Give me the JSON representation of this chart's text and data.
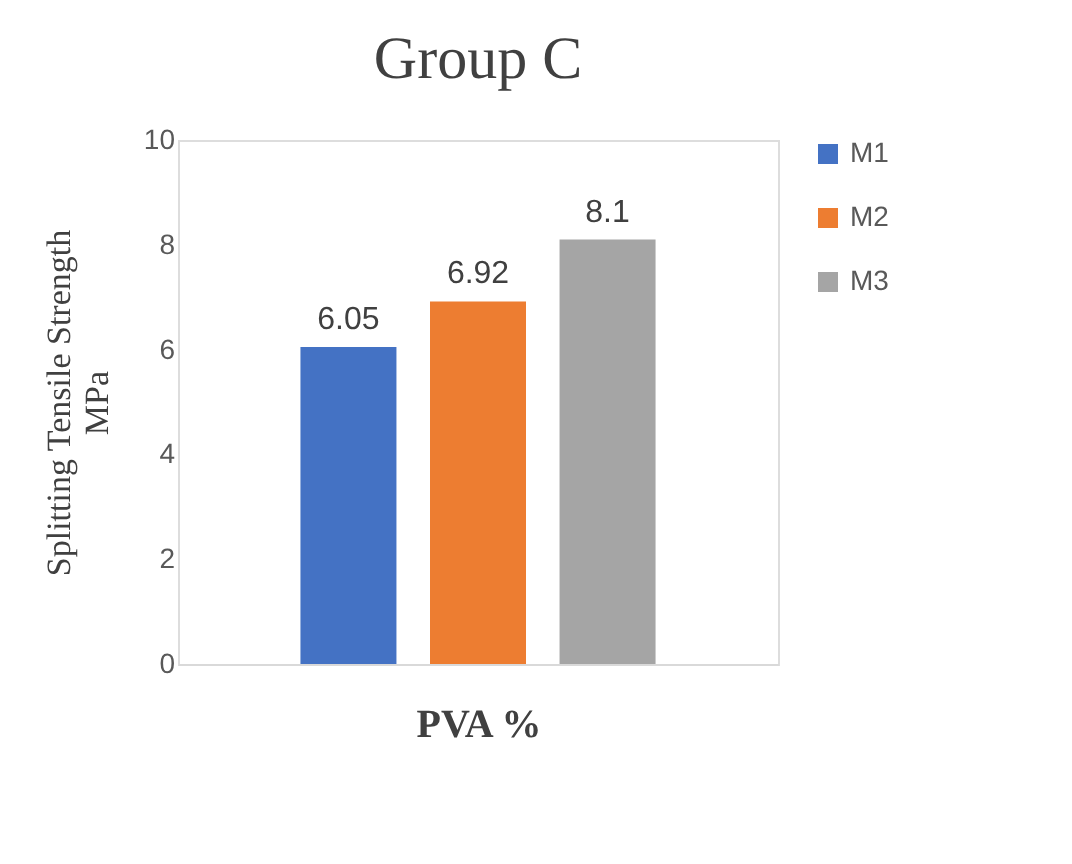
{
  "chart_data": {
    "type": "bar",
    "title": "Group C",
    "xlabel": "PVA %",
    "ylabel": "Splitting Tensile Strength MPa",
    "categories": [
      null
    ],
    "series": [
      {
        "name": "M1",
        "color": "#4472c4",
        "values": [
          6.05
        ]
      },
      {
        "name": "M2",
        "color": "#ed7d31",
        "values": [
          6.92
        ]
      },
      {
        "name": "M3",
        "color": "#a5a5a5",
        "values": [
          8.1
        ]
      }
    ],
    "ylim": [
      0,
      10
    ],
    "yticks": [
      0,
      2,
      4,
      6,
      8,
      10
    ],
    "data_labels": true,
    "legend": "right",
    "tick_labels": "y"
  }
}
